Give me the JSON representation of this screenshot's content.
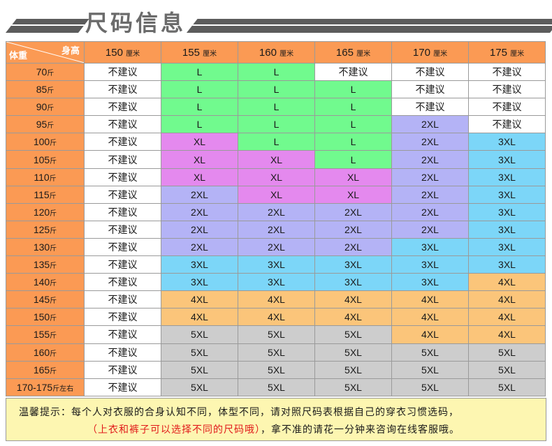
{
  "banner": {
    "title": "尺码信息"
  },
  "corner": {
    "height_label": "身高",
    "weight_label": "体重"
  },
  "columns": [
    {
      "value": "150",
      "unit": "厘米"
    },
    {
      "value": "155",
      "unit": "厘米"
    },
    {
      "value": "160",
      "unit": "厘米"
    },
    {
      "value": "165",
      "unit": "厘米"
    },
    {
      "value": "170",
      "unit": "厘米"
    },
    {
      "value": "175",
      "unit": "厘米"
    }
  ],
  "rows": [
    {
      "weight": "70",
      "unit": "斤",
      "sizes": [
        "不建议",
        "L",
        "L",
        "不建议",
        "不建议",
        "不建议"
      ]
    },
    {
      "weight": "85",
      "unit": "斤",
      "sizes": [
        "不建议",
        "L",
        "L",
        "L",
        "不建议",
        "不建议"
      ]
    },
    {
      "weight": "90",
      "unit": "斤",
      "sizes": [
        "不建议",
        "L",
        "L",
        "L",
        "不建议",
        "不建议"
      ]
    },
    {
      "weight": "95",
      "unit": "斤",
      "sizes": [
        "不建议",
        "L",
        "L",
        "L",
        "2XL",
        "不建议"
      ]
    },
    {
      "weight": "100",
      "unit": "斤",
      "sizes": [
        "不建议",
        "XL",
        "L",
        "L",
        "2XL",
        "3XL"
      ]
    },
    {
      "weight": "105",
      "unit": "斤",
      "sizes": [
        "不建议",
        "XL",
        "XL",
        "L",
        "2XL",
        "3XL"
      ]
    },
    {
      "weight": "110",
      "unit": "斤",
      "sizes": [
        "不建议",
        "XL",
        "XL",
        "XL",
        "2XL",
        "3XL"
      ]
    },
    {
      "weight": "115",
      "unit": "斤",
      "sizes": [
        "不建议",
        "2XL",
        "XL",
        "XL",
        "2XL",
        "3XL"
      ]
    },
    {
      "weight": "120",
      "unit": "斤",
      "sizes": [
        "不建议",
        "2XL",
        "2XL",
        "2XL",
        "2XL",
        "3XL"
      ]
    },
    {
      "weight": "125",
      "unit": "斤",
      "sizes": [
        "不建议",
        "2XL",
        "2XL",
        "2XL",
        "2XL",
        "3XL"
      ]
    },
    {
      "weight": "130",
      "unit": "斤",
      "sizes": [
        "不建议",
        "2XL",
        "2XL",
        "2XL",
        "3XL",
        "3XL"
      ]
    },
    {
      "weight": "135",
      "unit": "斤",
      "sizes": [
        "不建议",
        "3XL",
        "3XL",
        "3XL",
        "3XL",
        "3XL"
      ]
    },
    {
      "weight": "140",
      "unit": "斤",
      "sizes": [
        "不建议",
        "3XL",
        "3XL",
        "3XL",
        "3XL",
        "4XL"
      ]
    },
    {
      "weight": "145",
      "unit": "斤",
      "sizes": [
        "不建议",
        "4XL",
        "4XL",
        "4XL",
        "4XL",
        "4XL"
      ]
    },
    {
      "weight": "150",
      "unit": "斤",
      "sizes": [
        "不建议",
        "4XL",
        "4XL",
        "4XL",
        "4XL",
        "4XL"
      ]
    },
    {
      "weight": "155",
      "unit": "斤",
      "sizes": [
        "不建议",
        "5XL",
        "5XL",
        "5XL",
        "4XL",
        "4XL"
      ]
    },
    {
      "weight": "160",
      "unit": "斤",
      "sizes": [
        "不建议",
        "5XL",
        "5XL",
        "5XL",
        "5XL",
        "5XL"
      ]
    },
    {
      "weight": "165",
      "unit": "斤",
      "sizes": [
        "不建议",
        "5XL",
        "5XL",
        "5XL",
        "5XL",
        "5XL"
      ]
    },
    {
      "weight": "170-175",
      "unit": "斤左右",
      "sizes": [
        "不建议",
        "5XL",
        "5XL",
        "5XL",
        "5XL",
        "5XL"
      ]
    }
  ],
  "colors": {
    "header": "#fb9a54",
    "L": "#71fa8e",
    "XL": "#e489ee",
    "2XL": "#b4b3f6",
    "3XL": "#7cd6f8",
    "4XL": "#fbc57a",
    "5XL": "#cdcdcd",
    "not_recommended": "#ffffff",
    "note_bg": "#fdf6b1",
    "note_red": "#e11b1b"
  },
  "note": {
    "line1": "温馨提示：每个人对衣服的合身认知不同，体型不同，请对照尺码表根据自己的穿衣习惯选码，",
    "line2_red": "（上衣和裤子可以选择不同的尺码哦）",
    "line2_rest": "，拿不准的请花一分钟来咨询在线客服哦。"
  }
}
